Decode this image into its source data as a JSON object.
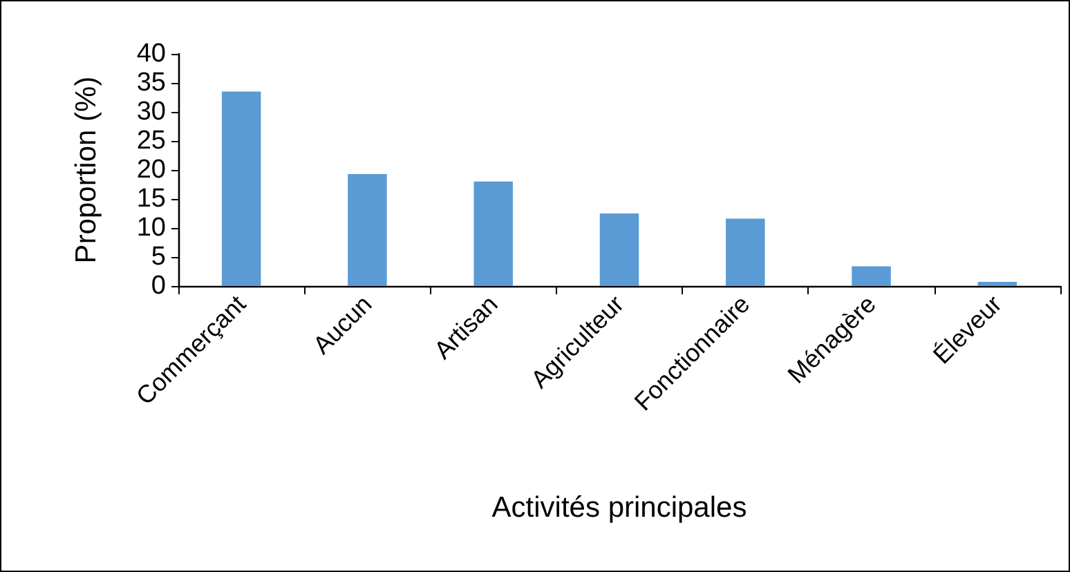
{
  "chart_data": {
    "type": "bar",
    "xlabel": "Activités principales",
    "ylabel": "Proportion (%)",
    "categories": [
      "Commerçant",
      "Aucun",
      "Artisan",
      "Agriculteur",
      "Fonctionnaire",
      "Ménagère",
      "Éleveur"
    ],
    "values": [
      33.5,
      19.3,
      18.0,
      12.5,
      11.6,
      3.4,
      0.7
    ],
    "color": "#5b9bd5",
    "ylim": [
      0,
      40
    ],
    "yticks": [
      0,
      5,
      10,
      15,
      20,
      25,
      30,
      35,
      40
    ],
    "grid": false
  }
}
